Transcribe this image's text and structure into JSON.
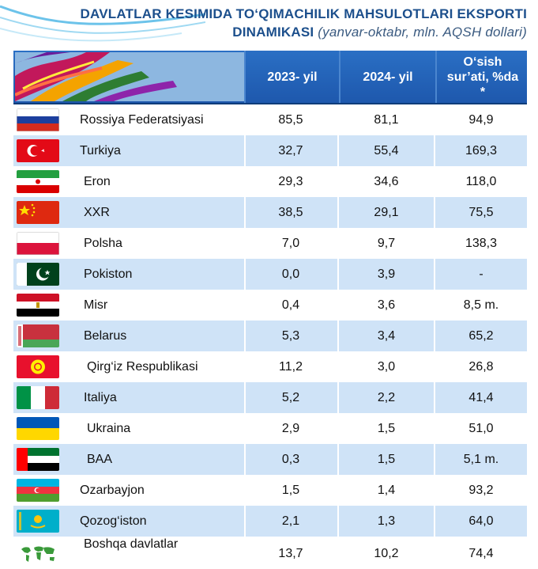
{
  "title": {
    "line1": "DAVLATLAR KESIMIDA TO‘QIMACHILIK MAHSULOTLARI EKSPORTI",
    "line2_main": "DINAMIKASI",
    "line2_sub": "(yanvar-oktabr, mln. AQSH dollari)"
  },
  "header": {
    "col1": "2023- yil",
    "col2": "2024- yil",
    "col3_line1": "O‘sish",
    "col3_line2": "sur’ati, %da",
    "col3_line3": "*"
  },
  "rows": [
    {
      "country": "Rossiya Federatsiyasi",
      "flag_icon": "russia-flag-icon",
      "y2023": "85,5",
      "y2024": "81,1",
      "growth": "94,9"
    },
    {
      "country": "Turkiya",
      "flag_icon": "turkey-flag-icon",
      "y2023": "32,7",
      "y2024": "55,4",
      "growth": "169,3"
    },
    {
      "country": "Eron",
      "flag_icon": "iran-flag-icon",
      "y2023": "29,3",
      "y2024": "34,6",
      "growth": "118,0"
    },
    {
      "country": "XXR",
      "flag_icon": "china-flag-icon",
      "y2023": "38,5",
      "y2024": "29,1",
      "growth": "75,5"
    },
    {
      "country": "Polsha",
      "flag_icon": "poland-flag-icon",
      "y2023": "7,0",
      "y2024": "9,7",
      "growth": "138,3"
    },
    {
      "country": "Pokiston",
      "flag_icon": "pakistan-flag-icon",
      "y2023": "0,0",
      "y2024": "3,9",
      "growth": "-"
    },
    {
      "country": "Misr",
      "flag_icon": "egypt-flag-icon",
      "y2023": "0,4",
      "y2024": "3,6",
      "growth": "8,5 m."
    },
    {
      "country": "Belarus",
      "flag_icon": "belarus-flag-icon",
      "y2023": "5,3",
      "y2024": "3,4",
      "growth": "65,2"
    },
    {
      "country": "Qirg‘iz Respublikasi",
      "flag_icon": "kyrgyzstan-flag-icon",
      "y2023": "11,2",
      "y2024": "3,0",
      "growth": "26,8"
    },
    {
      "country": "Italiya",
      "flag_icon": "italy-flag-icon",
      "y2023": "5,2",
      "y2024": "2,2",
      "growth": "41,4"
    },
    {
      "country": "Ukraina",
      "flag_icon": "ukraine-flag-icon",
      "y2023": "2,9",
      "y2024": "1,5",
      "growth": "51,0"
    },
    {
      "country": "BAA",
      "flag_icon": "uae-flag-icon",
      "y2023": "0,3",
      "y2024": "1,5",
      "growth": "5,1 m."
    },
    {
      "country": "Ozarbayjon",
      "flag_icon": "azerbaijan-flag-icon",
      "y2023": "1,5",
      "y2024": "1,4",
      "growth": "93,2"
    },
    {
      "country": "Qozog‘iston",
      "flag_icon": "kazakhstan-flag-icon",
      "y2023": "2,1",
      "y2024": "1,3",
      "growth": "64,0"
    },
    {
      "country": "Boshqa davlatlar",
      "flag_icon": "world-map-icon",
      "y2023": "13,7",
      "y2024": "10,2",
      "growth": "74,4"
    }
  ],
  "colors": {
    "title": "#1c4f8c",
    "header_bg": "#1e58ad",
    "alt_row": "#cfe3f7"
  }
}
